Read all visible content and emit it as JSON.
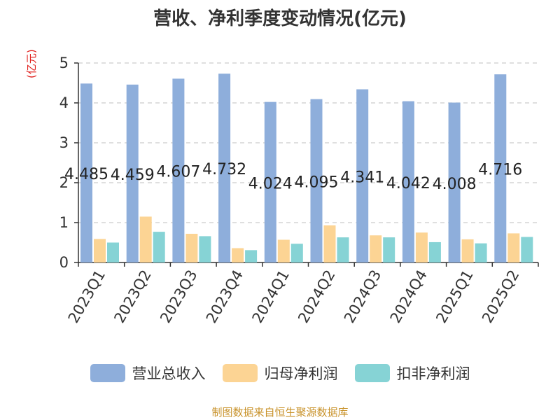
{
  "title": "营收、净利季度变动情况(亿元)",
  "unit_label": "(亿元)",
  "source": "制图数据来自恒生聚源数据库",
  "colors": {
    "revenue": "#8eaedb",
    "net_profit": "#fcd494",
    "non_gaap": "#86d3d5",
    "unit": "#e0201d",
    "source": "#c8922a"
  },
  "chart_data": {
    "type": "bar",
    "title": "营收、净利季度变动情况(亿元)",
    "ylabel": "(亿元)",
    "ylim": [
      0,
      5
    ],
    "yticks": [
      0,
      1,
      2,
      3,
      4,
      5
    ],
    "grid": true,
    "legend_position": "bottom",
    "categories": [
      "2023Q1",
      "2023Q2",
      "2023Q3",
      "2023Q4",
      "2024Q1",
      "2024Q2",
      "2024Q3",
      "2024Q4",
      "2025Q1",
      "2025Q2"
    ],
    "series": [
      {
        "name": "营业总收入",
        "color": "#8eaedb",
        "values": [
          4.485,
          4.459,
          4.607,
          4.732,
          4.024,
          4.095,
          4.341,
          4.042,
          4.008,
          4.716
        ],
        "labels": [
          "4.485",
          "4.459",
          "4.607",
          "4.732",
          "4.024",
          "4.095",
          "4.341",
          "4.042",
          "4.008",
          "4.716"
        ]
      },
      {
        "name": "归母净利润",
        "color": "#fcd494",
        "values": [
          0.59,
          1.15,
          0.72,
          0.36,
          0.57,
          0.93,
          0.68,
          0.75,
          0.58,
          0.73
        ]
      },
      {
        "name": "扣非净利润",
        "color": "#86d3d5",
        "values": [
          0.5,
          0.77,
          0.66,
          0.31,
          0.47,
          0.63,
          0.63,
          0.51,
          0.48,
          0.64
        ]
      }
    ]
  }
}
